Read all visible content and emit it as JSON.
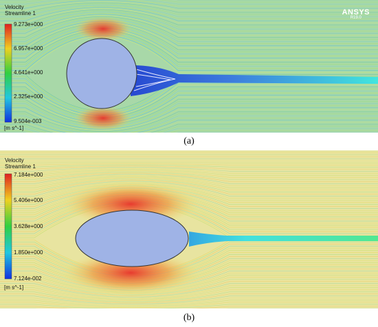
{
  "panels": [
    {
      "id": "a",
      "caption": "(a)",
      "legend": {
        "title_line1": "Velocity",
        "title_line2": "Streamline 1",
        "ticks": [
          "9.273e+000",
          "6.957e+000",
          "4.641e+000",
          "2.325e+000",
          "9.504e-003"
        ],
        "unit": "[m s^-1]"
      },
      "logo": {
        "brand": "ANSYS",
        "version": "R19.0"
      }
    },
    {
      "id": "b",
      "caption": "(b)",
      "legend": {
        "title_line1": "Velocity",
        "title_line2": "Streamline 1",
        "ticks": [
          "7.184e+000",
          "5.406e+000",
          "3.628e+000",
          "1.850e+000",
          "7.124e-002"
        ],
        "unit": "[m s^-1]"
      }
    }
  ],
  "colors": {
    "background_flow": "#8fd6a0",
    "obstacle_fill": "#9fb3e6",
    "high_velocity": "#e8322a",
    "wake": "#1e5fe0",
    "wake_tail": "#22e0e8"
  }
}
